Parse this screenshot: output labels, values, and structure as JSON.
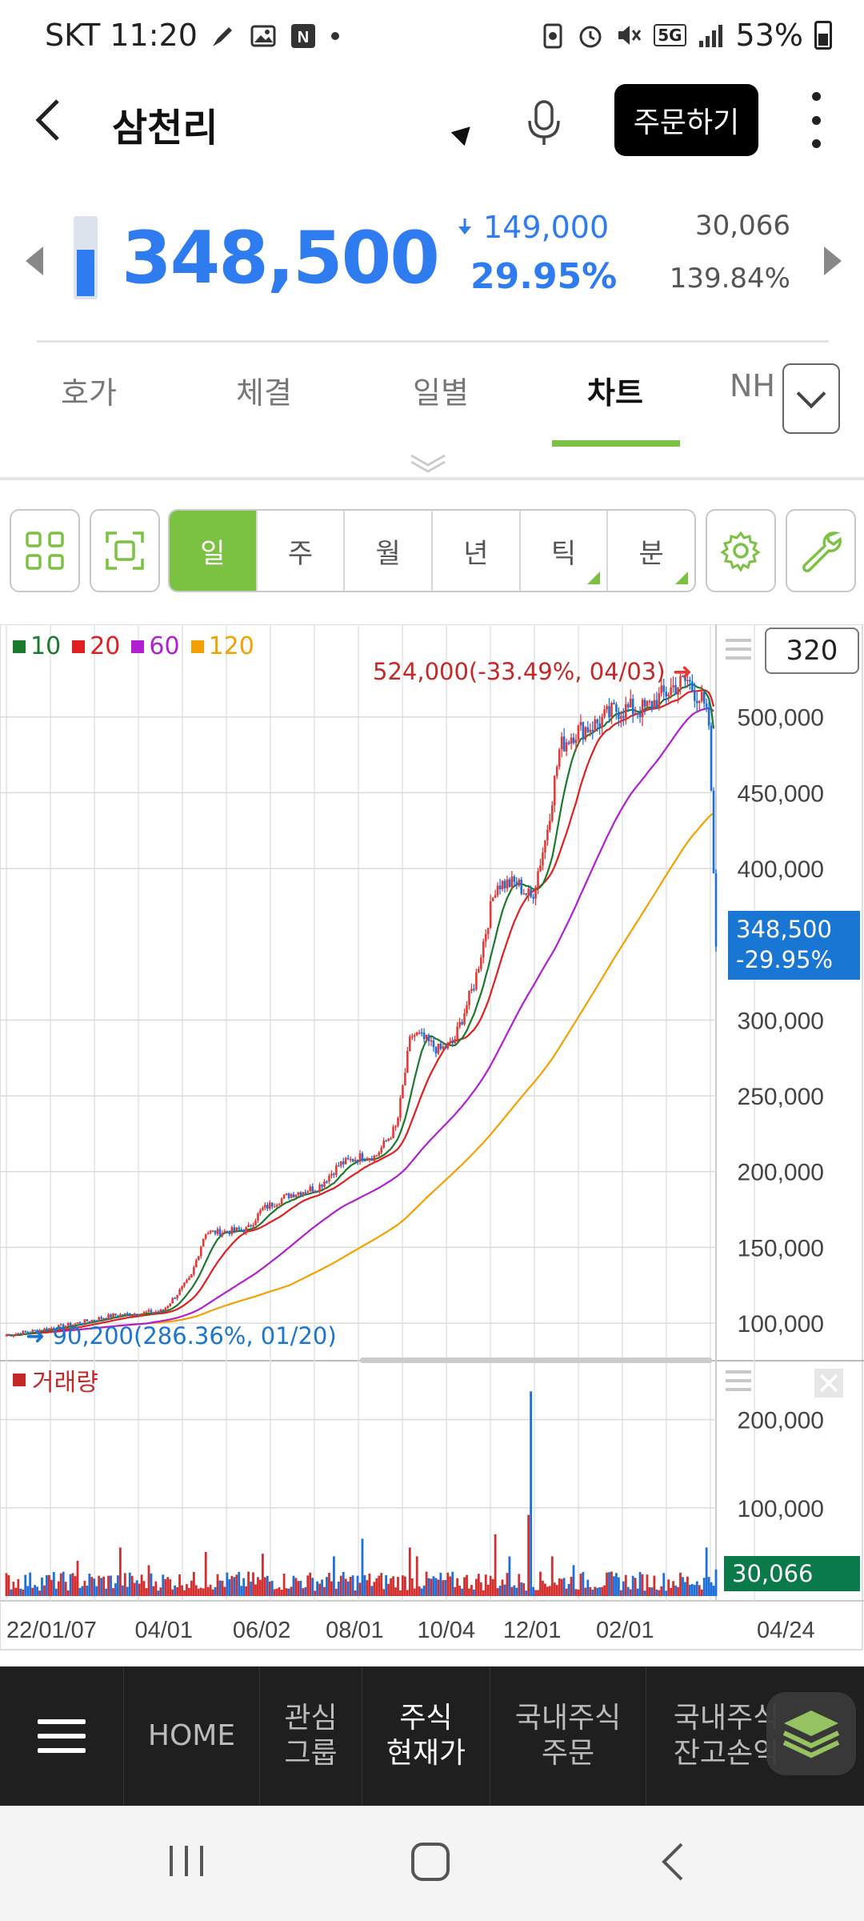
{
  "status_bar": {
    "time": "SKT 11:20",
    "battery": "53%",
    "network": "5G"
  },
  "header": {
    "title": "삼천리",
    "order_button": "주문하기"
  },
  "quote": {
    "price": "348,500",
    "change_value": "149,000",
    "change_pct": "29.95%",
    "volume": "30,066",
    "volume_ratio": "139.84%",
    "gauge_level": 0.6
  },
  "tabs": [
    "호가",
    "체결",
    "일별",
    "차트",
    "NH"
  ],
  "active_tab": "차트",
  "toolbar": {
    "periods": [
      "일",
      "주",
      "월",
      "년",
      "틱",
      "분"
    ],
    "active_period": "일",
    "period_count": "320"
  },
  "chart_data": {
    "type": "line",
    "ma_legend": [
      {
        "name": "10",
        "color": "#1b7a2e"
      },
      {
        "name": "20",
        "color": "#e02020"
      },
      {
        "name": "60",
        "color": "#b020d0"
      },
      {
        "name": "120",
        "color": "#f5a000"
      }
    ],
    "price_axis": [
      "500,000",
      "450,000",
      "400,000",
      "300,000",
      "250,000",
      "200,000",
      "150,000",
      "100,000"
    ],
    "price_ticks": [
      500000,
      450000,
      400000,
      300000,
      250000,
      200000,
      150000,
      100000
    ],
    "ylim": [
      90000,
      540000
    ],
    "x_tick_labels": [
      "22/01/07",
      "04/01",
      "06/02",
      "08/01",
      "10/04",
      "12/01",
      "02/01",
      "04/24"
    ],
    "x_tick_positions": [
      0.0,
      0.226,
      0.364,
      0.495,
      0.624,
      0.745,
      0.876,
      1.0
    ],
    "close_series": {
      "x": [
        0.0,
        0.08,
        0.15,
        0.22,
        0.26,
        0.28,
        0.3,
        0.34,
        0.36,
        0.4,
        0.44,
        0.47,
        0.5,
        0.52,
        0.55,
        0.57,
        0.58,
        0.61,
        0.63,
        0.66,
        0.69,
        0.72,
        0.74,
        0.76,
        0.78,
        0.8,
        0.83,
        0.86,
        0.9,
        0.94,
        0.96,
        0.98,
        0.99,
        1.0
      ],
      "close": [
        92000,
        98000,
        105000,
        108000,
        130000,
        160000,
        160000,
        162000,
        175000,
        185000,
        190000,
        205000,
        210000,
        210000,
        230000,
        290000,
        290000,
        280000,
        285000,
        325000,
        390000,
        390000,
        380000,
        420000,
        480000,
        490000,
        495000,
        505000,
        505000,
        520000,
        524000,
        510000,
        495000,
        348500
      ]
    },
    "high_marker": "524,000(-33.49%, 04/03)",
    "low_marker": "90,200(286.36%, 01/20)",
    "current_label": [
      "348,500",
      "-29.95%"
    ],
    "volume_legend": "거래량",
    "volume_axis": [
      "200,000",
      "100,000"
    ],
    "volume_ticks": [
      200000,
      100000
    ],
    "volume_ylim": [
      0,
      245000
    ],
    "current_volume": "30,066",
    "volume_spikes": [
      {
        "x": 0.1,
        "v": 40000
      },
      {
        "x": 0.16,
        "v": 55000
      },
      {
        "x": 0.2,
        "v": 35000
      },
      {
        "x": 0.28,
        "v": 50000
      },
      {
        "x": 0.36,
        "v": 48000
      },
      {
        "x": 0.46,
        "v": 45000
      },
      {
        "x": 0.5,
        "v": 65000
      },
      {
        "x": 0.57,
        "v": 55000
      },
      {
        "x": 0.58,
        "v": 45000
      },
      {
        "x": 0.69,
        "v": 70000
      },
      {
        "x": 0.71,
        "v": 45000
      },
      {
        "x": 0.735,
        "v": 92000
      },
      {
        "x": 0.74,
        "v": 232000
      },
      {
        "x": 0.77,
        "v": 45000
      },
      {
        "x": 0.8,
        "v": 35000
      },
      {
        "x": 0.985,
        "v": 55000
      }
    ]
  },
  "bottom_nav": [
    {
      "label": "HOME"
    },
    {
      "label": "관심\n그룹"
    },
    {
      "label": "주식\n현재가"
    },
    {
      "label": "국내주식\n주문"
    },
    {
      "label": "국내주식\n잔고손익"
    }
  ],
  "bottom_nav_active": "주식\n현재가"
}
